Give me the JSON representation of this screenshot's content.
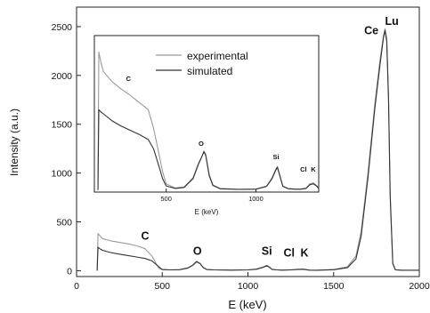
{
  "chart_data": [
    {
      "type": "line",
      "xlabel": "E (keV)",
      "ylabel": "Intensity (a.u.)",
      "xlim": [
        0,
        2000
      ],
      "ylim": [
        -60,
        2700
      ],
      "xticks": [
        0,
        500,
        1000,
        1500,
        2000
      ],
      "yticks": [
        0,
        500,
        1000,
        1500,
        2000,
        2500
      ],
      "grid": false,
      "series": [
        {
          "color": "#9a9a9a",
          "x": [
            120,
            125,
            135,
            150,
            170,
            200,
            250,
            300,
            350,
            400,
            440,
            480,
            500,
            550,
            600,
            650,
            680,
            700,
            720,
            740,
            760,
            800,
            900,
            1000,
            1050,
            1090,
            1110,
            1125,
            1140,
            1170,
            1200,
            1250,
            1290,
            1320,
            1340,
            1360,
            1400,
            1500,
            1580,
            1630,
            1660,
            1700,
            1740,
            1770,
            1790,
            1800,
            1810,
            1820,
            1830,
            1845,
            1860,
            1900,
            2000
          ],
          "y": [
            0,
            380,
            360,
            330,
            320,
            305,
            290,
            275,
            255,
            225,
            150,
            25,
            10,
            8,
            10,
            25,
            55,
            88,
            70,
            30,
            12,
            8,
            6,
            8,
            18,
            40,
            55,
            38,
            15,
            8,
            6,
            8,
            15,
            18,
            12,
            6,
            5,
            12,
            40,
            150,
            400,
            1000,
            1700,
            2150,
            2400,
            2480,
            2380,
            1800,
            800,
            80,
            10,
            5,
            5
          ]
        },
        {
          "color": "#333333",
          "x": [
            120,
            125,
            135,
            150,
            200,
            250,
            300,
            350,
            400,
            440,
            480,
            500,
            550,
            600,
            650,
            680,
            700,
            720,
            740,
            760,
            800,
            900,
            1000,
            1050,
            1090,
            1110,
            1125,
            1140,
            1170,
            1200,
            1250,
            1290,
            1320,
            1340,
            1360,
            1400,
            1500,
            1580,
            1630,
            1660,
            1700,
            1740,
            1770,
            1790,
            1800,
            1810,
            1820,
            1830,
            1845,
            1860,
            1900,
            2000
          ],
          "y": [
            0,
            240,
            225,
            210,
            185,
            170,
            155,
            140,
            125,
            100,
            40,
            12,
            8,
            10,
            28,
            60,
            95,
            75,
            32,
            12,
            8,
            6,
            8,
            15,
            35,
            50,
            35,
            14,
            8,
            6,
            8,
            12,
            15,
            10,
            6,
            5,
            10,
            30,
            120,
            350,
            950,
            1650,
            2100,
            2380,
            2460,
            2350,
            1750,
            750,
            70,
            8,
            5,
            5
          ]
        }
      ],
      "annotations": [
        {
          "text": "C",
          "x": 400,
          "y": 320
        },
        {
          "text": "O",
          "x": 705,
          "y": 165
        },
        {
          "text": "Si",
          "x": 1110,
          "y": 165
        },
        {
          "text": "Cl",
          "x": 1240,
          "y": 145
        },
        {
          "text": "K",
          "x": 1330,
          "y": 145
        },
        {
          "text": "Ce",
          "x": 1720,
          "y": 2420
        },
        {
          "text": "Lu",
          "x": 1840,
          "y": 2520
        }
      ]
    },
    {
      "type": "line",
      "xlabel": "E (keV)",
      "ylabel": "",
      "xlim": [
        100,
        1350
      ],
      "ylim": [
        -20,
        1500
      ],
      "xticks": [
        500,
        1000
      ],
      "yticks": [],
      "legend": "top-left",
      "series": [
        {
          "name": "experimental",
          "color": "#9a9a9a",
          "x": [
            120,
            125,
            135,
            150,
            175,
            200,
            250,
            300,
            350,
            380,
            400,
            430,
            460,
            480,
            500,
            550,
            600,
            650,
            680,
            700,
            710,
            720,
            740,
            760,
            800,
            900,
            1000,
            1060,
            1090,
            1110,
            1120,
            1135,
            1150,
            1180,
            1220,
            1250,
            1280,
            1300,
            1320,
            1340,
            1350
          ],
          "y": [
            0,
            1340,
            1250,
            1150,
            1100,
            1050,
            980,
            920,
            850,
            810,
            780,
            600,
            350,
            180,
            60,
            20,
            30,
            120,
            260,
            330,
            380,
            350,
            150,
            50,
            15,
            8,
            10,
            40,
            120,
            200,
            230,
            130,
            40,
            15,
            10,
            10,
            20,
            60,
            70,
            40,
            15
          ]
        },
        {
          "name": "simulated",
          "color": "#333333",
          "x": [
            120,
            125,
            135,
            150,
            200,
            250,
            300,
            350,
            400,
            430,
            460,
            480,
            500,
            550,
            600,
            650,
            680,
            700,
            710,
            720,
            740,
            760,
            800,
            900,
            1000,
            1060,
            1090,
            1110,
            1120,
            1135,
            1150,
            1180,
            1220,
            1250,
            1280,
            1300,
            1320,
            1340,
            1350
          ],
          "y": [
            0,
            780,
            760,
            740,
            670,
            620,
            580,
            540,
            490,
            400,
            230,
            110,
            40,
            15,
            25,
            110,
            250,
            330,
            370,
            340,
            140,
            45,
            12,
            6,
            8,
            35,
            110,
            190,
            220,
            125,
            35,
            12,
            8,
            8,
            15,
            50,
            60,
            35,
            12
          ]
        }
      ],
      "annotations": [
        {
          "text": "C",
          "x": 290,
          "y": 1060
        },
        {
          "text": "O",
          "x": 695,
          "y": 430
        },
        {
          "text": "Si",
          "x": 1112,
          "y": 300
        },
        {
          "text": "Cl",
          "x": 1265,
          "y": 180
        },
        {
          "text": "K",
          "x": 1320,
          "y": 180
        }
      ]
    }
  ]
}
